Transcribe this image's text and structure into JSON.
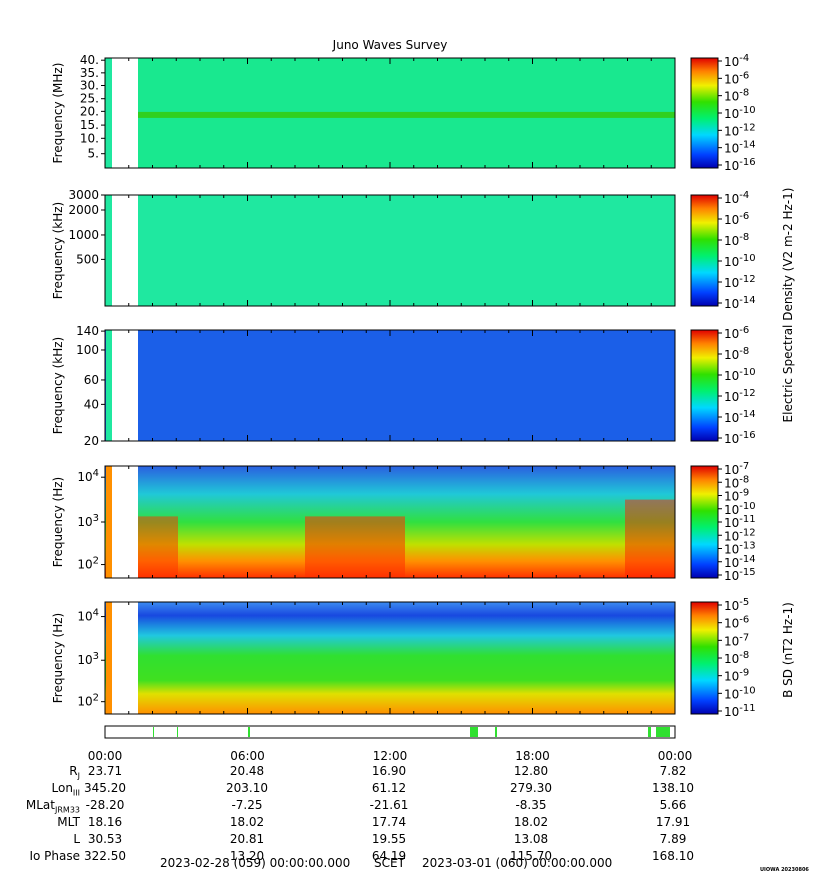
{
  "title": "Juno Waves Survey",
  "chart_data": {
    "type": "heatmap",
    "title": "Juno Waves Survey",
    "x_ticks": [
      "00:00",
      "06:00",
      "12:00",
      "18:00",
      "00:00"
    ],
    "panels": [
      {
        "ylabel": "Frequency (MHz)",
        "yticks": [
          "40.",
          "35.",
          "30.",
          "25.",
          "20.",
          "15.",
          "10.",
          "5."
        ],
        "colorbar": [
          "10-4",
          "10-6",
          "10-8",
          "10-10",
          "10-12",
          "10-14",
          "10-16"
        ],
        "base_color": "#19e88f",
        "has_band": true
      },
      {
        "ylabel": "Frequency (kHz)",
        "yticks": [
          "3000",
          "2000",
          "1000",
          "500"
        ],
        "colorbar": [
          "10-4",
          "10-6",
          "10-8",
          "10-10",
          "10-12",
          "10-14"
        ],
        "base_color": "#1fe8a0"
      },
      {
        "ylabel": "Frequency (kHz)",
        "yticks": [
          "140",
          "100",
          "60",
          "40",
          "20"
        ],
        "colorbar": [
          "10-6",
          "10-8",
          "10-10",
          "10-12",
          "10-14",
          "10-16"
        ],
        "base_color": "#1b5fe8"
      },
      {
        "ylabel": "Frequency (Hz)",
        "yticks": [
          "10^4",
          "10^3",
          "10^2"
        ],
        "colorbar": [
          "10-7",
          "10-8",
          "10-9",
          "10-10",
          "10-11",
          "10-12",
          "10-13",
          "10-14",
          "10-15"
        ],
        "base_color": "#27c0c8"
      },
      {
        "ylabel": "Frequency (Hz)",
        "yticks": [
          "10^4",
          "10^3",
          "10^2"
        ],
        "colorbar": [
          "10-5",
          "10-6",
          "10-7",
          "10-8",
          "10-9",
          "10-10",
          "10-11"
        ],
        "base_color": "#20d028"
      }
    ],
    "colorbar_label_upper": "Electric Spectral Density (V2 m-2 Hz-1)",
    "colorbar_label_lower": "B SD (nT2 Hz-1)"
  },
  "ephemeris": {
    "labels": [
      "RJ",
      "LonIII",
      "MLatJRM33",
      "MLT",
      "L",
      "Io Phase"
    ],
    "rows": [
      [
        "23.71",
        "20.48",
        "16.90",
        "12.80",
        "7.82"
      ],
      [
        "345.20",
        "203.10",
        "61.12",
        "279.30",
        "138.10"
      ],
      [
        "-28.20",
        "-7.25",
        "-21.61",
        "-8.35",
        "5.66"
      ],
      [
        "18.16",
        "18.02",
        "17.74",
        "18.02",
        "17.91"
      ],
      [
        "30.53",
        "20.81",
        "19.55",
        "13.08",
        "7.89"
      ],
      [
        "322.50",
        "13.20",
        "64.19",
        "115.70",
        "168.10"
      ]
    ]
  },
  "footer": {
    "start": "2023-02-28 (059) 00:00:00.000",
    "scet": "SCET",
    "end": "2023-03-01 (060) 00:00:00.000",
    "stamp": "UIOWA 20230806"
  }
}
